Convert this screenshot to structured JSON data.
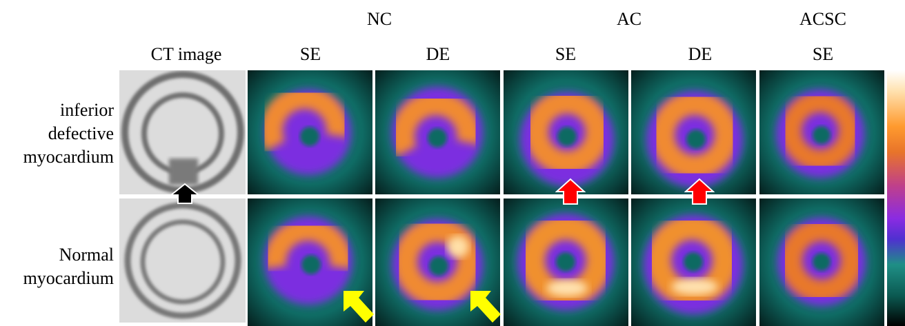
{
  "header": {
    "nc": "NC",
    "ac": "AC",
    "acsc": "ACSC",
    "ct_image": "CT image",
    "se1": "SE",
    "de1": "DE",
    "se2": "SE",
    "de2": "DE",
    "se3": "SE"
  },
  "rows": {
    "row1_label_line1": "inferior",
    "row1_label_line2": "defective",
    "row1_label_line3": "myocardium",
    "row2_label_line1": "Normal",
    "row2_label_line2": "myocardium"
  },
  "colors": {
    "black_arrow": "#000000",
    "red_arrow": "#ff0000",
    "yellow_arrow": "#ffff00"
  }
}
